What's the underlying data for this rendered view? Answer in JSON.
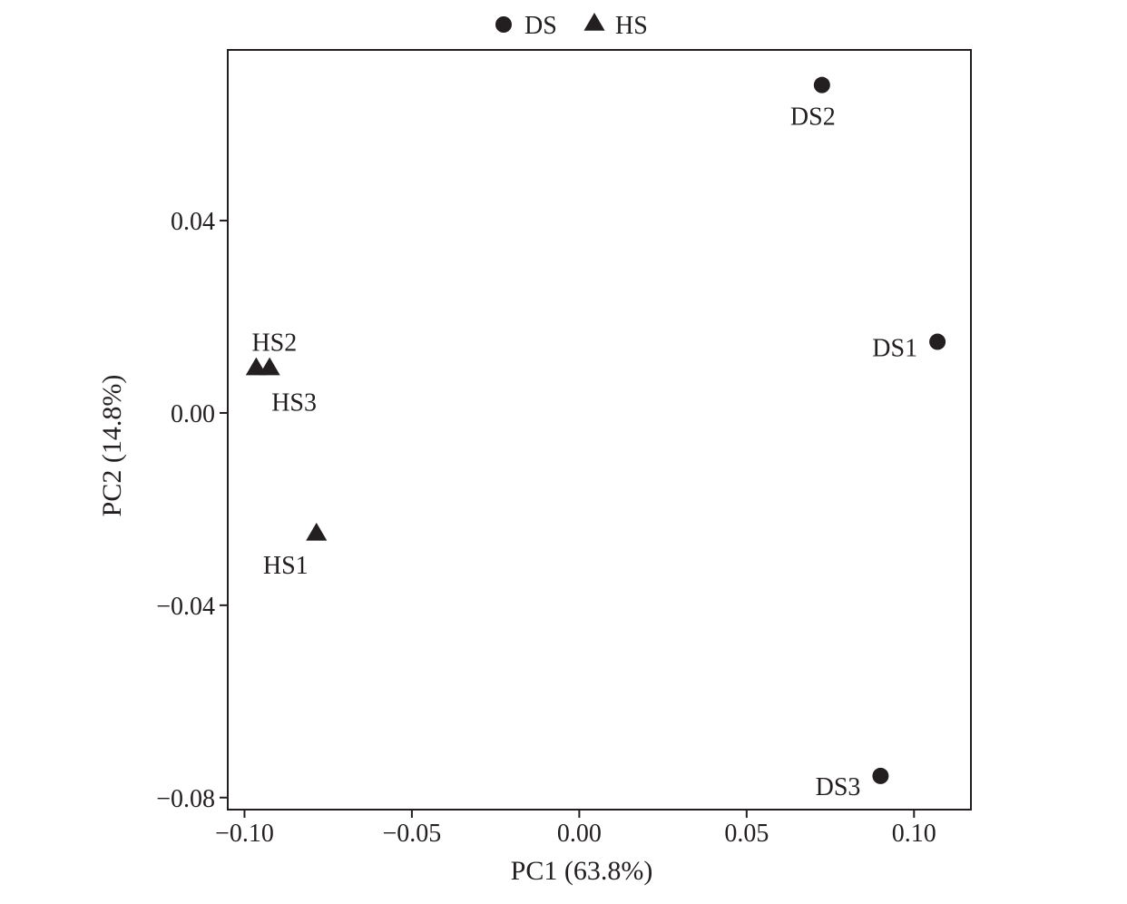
{
  "chart_data": {
    "type": "scatter",
    "title": "",
    "xlabel": "PC1 (63.8%)",
    "ylabel": "PC2 (14.8%)",
    "xlim": [
      -0.105,
      0.117
    ],
    "ylim": [
      -0.0825,
      0.0755
    ],
    "x_ticks": [
      -0.1,
      -0.05,
      0.0,
      0.05,
      0.1
    ],
    "x_tick_labels": [
      "−0.10",
      "−0.05",
      "0.00",
      "0.05",
      "0.10"
    ],
    "y_ticks": [
      -0.08,
      -0.04,
      0.0,
      0.04
    ],
    "y_tick_labels": [
      "−0.08",
      "−0.04",
      "0.00",
      "0.04"
    ],
    "grid": false,
    "legend_position": "top-center",
    "marker_color": "#231f20",
    "series": [
      {
        "name": "DS",
        "marker": "circle",
        "points": [
          {
            "label": "DS1",
            "x": 0.107,
            "y": 0.0148
          },
          {
            "label": "DS2",
            "x": 0.0725,
            "y": 0.0682
          },
          {
            "label": "DS3",
            "x": 0.09,
            "y": -0.0755
          }
        ]
      },
      {
        "name": "HS",
        "marker": "triangle",
        "points": [
          {
            "label": "HS1",
            "x": -0.0785,
            "y": -0.0249
          },
          {
            "label": "HS2",
            "x": -0.0965,
            "y": 0.0095
          },
          {
            "label": "HS3",
            "x": -0.0925,
            "y": 0.0095
          }
        ]
      }
    ]
  }
}
